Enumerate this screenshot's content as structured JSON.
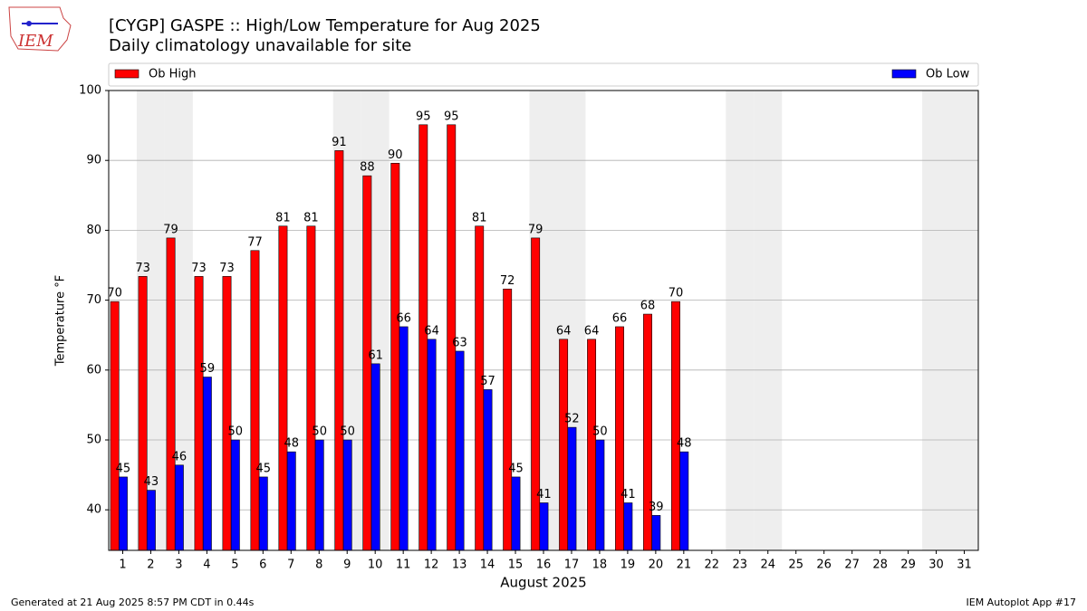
{
  "logo_text": "IEM",
  "footer_left": "Generated at 21 Aug 2025 8:57 PM CDT in 0.44s",
  "footer_right": "IEM Autoplot App #17",
  "chart_data": {
    "type": "bar",
    "title": "[CYGP] GASPE :: High/Low Temperature for Aug 2025",
    "subtitle": "Daily climatology unavailable for site",
    "xlabel": "August 2025",
    "ylabel": "Temperature °F",
    "categories": [
      "1",
      "2",
      "3",
      "4",
      "5",
      "6",
      "7",
      "8",
      "9",
      "10",
      "11",
      "12",
      "13",
      "14",
      "15",
      "16",
      "17",
      "18",
      "19",
      "20",
      "21",
      "22",
      "23",
      "24",
      "25",
      "26",
      "27",
      "28",
      "29",
      "30",
      "31"
    ],
    "shaded": [
      1,
      2,
      8,
      9,
      15,
      16,
      22,
      23,
      29,
      30
    ],
    "series": [
      {
        "name": "Ob High",
        "color": "#ff0000",
        "values": [
          69.8,
          73.4,
          78.9,
          73.4,
          73.4,
          77.1,
          80.6,
          80.6,
          91.4,
          87.8,
          89.6,
          95.1,
          95.1,
          80.6,
          71.6,
          78.9,
          64.4,
          64.4,
          66.2,
          68.0,
          69.8,
          null,
          null,
          null,
          null,
          null,
          null,
          null,
          null,
          null,
          null
        ],
        "value_labels": [
          "70",
          "73",
          "79",
          "73",
          "73",
          "77",
          "81",
          "81",
          "91",
          "88",
          "90",
          "95",
          "95",
          "81",
          "72",
          "79",
          "64",
          "64",
          "66",
          "68",
          "70",
          null,
          null,
          null,
          null,
          null,
          null,
          null,
          null,
          null,
          null
        ]
      },
      {
        "name": "Ob Low",
        "color": "#0000ff",
        "values": [
          44.7,
          42.8,
          46.4,
          59.0,
          50.0,
          44.7,
          48.3,
          50.0,
          50.0,
          60.9,
          66.2,
          64.4,
          62.7,
          57.2,
          44.7,
          41.0,
          51.8,
          50.0,
          41.0,
          39.2,
          48.3,
          null,
          null,
          null,
          null,
          null,
          null,
          null,
          null,
          null,
          null
        ],
        "value_labels": [
          "45",
          "43",
          "46",
          "59",
          "50",
          "45",
          "48",
          "50",
          "50",
          "61",
          "66",
          "64",
          "63",
          "57",
          "45",
          "41",
          "52",
          "50",
          "41",
          "39",
          "48",
          null,
          null,
          null,
          null,
          null,
          null,
          null,
          null,
          null,
          null
        ]
      }
    ],
    "ylim": [
      34.2,
      100
    ],
    "yticks": [
      40,
      50,
      60,
      70,
      80,
      90,
      100
    ],
    "grid": true,
    "legend": "top"
  }
}
